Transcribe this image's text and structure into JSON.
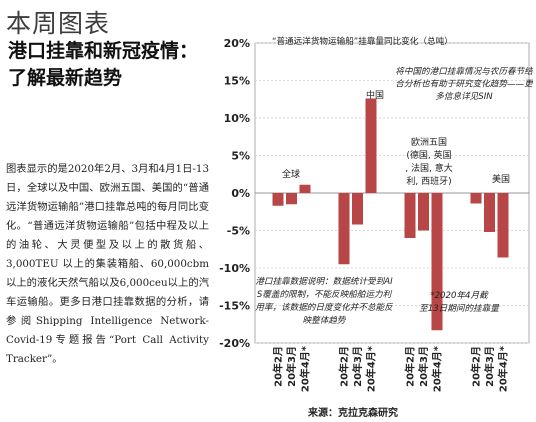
{
  "page": {
    "section_title": "本周图表",
    "headline_line1": "港口挂靠和新冠疫情：",
    "headline_line2": "了解最新趋势",
    "body": "图表显示的是2020年2月、3月和4月1日-13日，全球以及中国、欧洲五国、美国的“普通远洋货物运输船”港口挂靠总吨的每月同比变化。“普通远洋货物运输船”包括中程及以上的油轮、大灵便型及以上的散货船、3,000TEU 以上的集装箱船、60,000cbm以上的液化天然气船以及6,000ceu以上的汽车运输船。更多日港口挂靠数据的分析，请参阅Shipping Intelligence Network-Covid-19专题报告“Port Call Activity Tracker”。"
  },
  "chart_data": {
    "type": "bar",
    "title": "“普通远洋货物运输船”挂靠量同比变化（总吨）",
    "ylim": [
      -20,
      20
    ],
    "yticks": [
      20,
      15,
      10,
      5,
      0,
      -5,
      -10,
      -15,
      -20
    ],
    "ytick_labels": [
      "20%",
      "15%",
      "10%",
      "5%",
      "0%",
      "-5%",
      "-10%",
      "-15%",
      "-20%"
    ],
    "groups": [
      "全球",
      "中国",
      "欧洲五国\n(德国, 英国\n, 法国, 意大\n利, 西班牙)",
      "美国"
    ],
    "categories": [
      "20年2月",
      "20年3月",
      "20年4月*"
    ],
    "values": [
      [
        -1.7,
        -1.5,
        1.1
      ],
      [
        -9.5,
        -4.2,
        12.6
      ],
      [
        -6.0,
        -5.0,
        -18.3
      ],
      [
        -1.4,
        -5.2,
        -8.6
      ]
    ],
    "bar_color": "#b94646",
    "annotations": [
      "将中国的港口挂靠情况与农历春节结合分析也有助于研究变化趋势——更多信息详见SIN",
      "港口挂靠数据说明：数据统计受到AIS覆盖的限制，不能反映船舶运力利用率，该数据的日度变化并不总能反映整体趋势",
      "*2020年4月截至13日期间的挂靠量"
    ],
    "source": "来源：克拉克森研究"
  }
}
